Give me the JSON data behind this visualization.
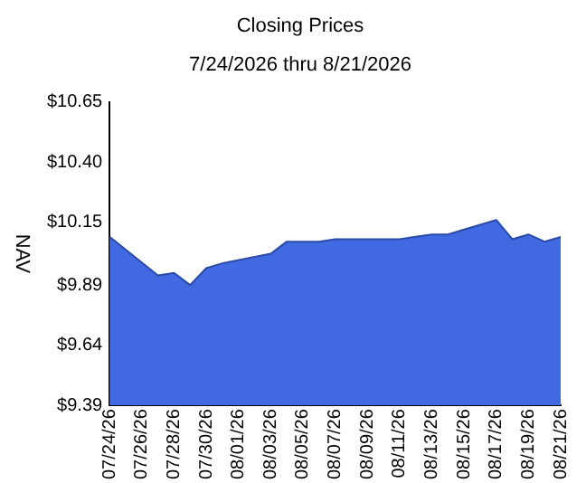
{
  "chart_data": {
    "type": "area",
    "title": "Closing Prices",
    "subtitle": "7/24/2026 thru 8/21/2026",
    "ylabel": "NAV",
    "x": [
      "2026-07-24",
      "2026-07-27",
      "2026-07-28",
      "2026-07-29",
      "2026-07-30",
      "2026-07-31",
      "2026-08-03",
      "2026-08-04",
      "2026-08-05",
      "2026-08-06",
      "2026-08-07",
      "2026-08-10",
      "2026-08-11",
      "2026-08-12",
      "2026-08-13",
      "2026-08-14",
      "2026-08-17",
      "2026-08-18",
      "2026-08-19",
      "2026-08-20",
      "2026-08-21"
    ],
    "series": [
      {
        "color": "#4169e1",
        "values": [
          10.09,
          9.93,
          9.94,
          9.89,
          9.96,
          9.98,
          10.02,
          10.07,
          10.07,
          10.07,
          10.08,
          10.08,
          10.08,
          10.09,
          10.1,
          10.1,
          10.16,
          10.08,
          10.1,
          10.07,
          10.09
        ]
      }
    ],
    "xlim": [
      "2026-07-24",
      "2026-08-21"
    ],
    "xticks": [
      {
        "value": "2026-07-24",
        "label": "07/24/26"
      },
      {
        "value": "2026-07-26",
        "label": "07/26/26"
      },
      {
        "value": "2026-07-28",
        "label": "07/28/26"
      },
      {
        "value": "2026-07-30",
        "label": "07/30/26"
      },
      {
        "value": "2026-08-01",
        "label": "08/01/26"
      },
      {
        "value": "2026-08-03",
        "label": "08/03/26"
      },
      {
        "value": "2026-08-05",
        "label": "08/05/26"
      },
      {
        "value": "2026-08-07",
        "label": "08/07/26"
      },
      {
        "value": "2026-08-09",
        "label": "08/09/26"
      },
      {
        "value": "2026-08-11",
        "label": "08/11/26"
      },
      {
        "value": "2026-08-13",
        "label": "08/13/26"
      },
      {
        "value": "2026-08-15",
        "label": "08/15/26"
      },
      {
        "value": "2026-08-17",
        "label": "08/17/26"
      },
      {
        "value": "2026-08-19",
        "label": "08/19/26"
      },
      {
        "value": "2026-08-21",
        "label": "08/21/26"
      }
    ],
    "ylim": [
      9.39,
      10.65
    ],
    "yticks": [
      {
        "value": 9.39,
        "label": "$9.39"
      },
      {
        "value": 9.64,
        "label": "$9.64"
      },
      {
        "value": 9.89,
        "label": "$9.89"
      },
      {
        "value": 10.15,
        "label": "$10.15"
      },
      {
        "value": 10.4,
        "label": "$10.40"
      },
      {
        "value": 10.65,
        "label": "$10.65"
      }
    ],
    "grid": false,
    "legend": false,
    "marker": "none"
  }
}
